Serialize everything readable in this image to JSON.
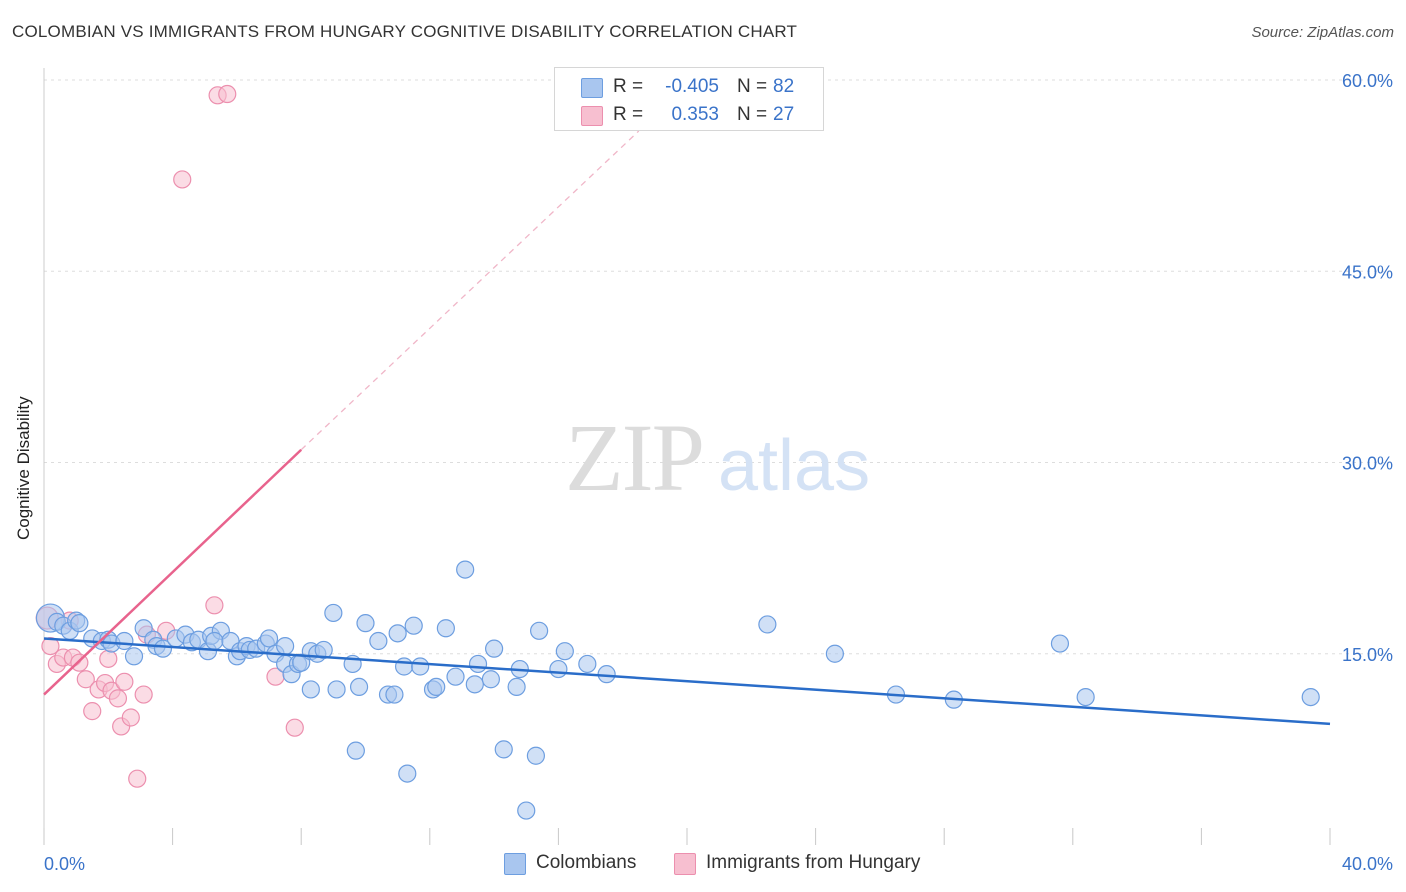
{
  "title": "COLOMBIAN VS IMMIGRANTS FROM HUNGARY COGNITIVE DISABILITY CORRELATION CHART",
  "source": "Source: ZipAtlas.com",
  "watermark": {
    "zip": "ZIP",
    "atlas": "atlas"
  },
  "legend_top": {
    "rows": [
      {
        "r_label": "R =",
        "r_value": "-0.405",
        "n_label": "N =",
        "n_value": "82"
      },
      {
        "r_label": "R =",
        "r_value": "0.353",
        "n_label": "N =",
        "n_value": "27"
      }
    ]
  },
  "legend_bottom": [
    "Colombians",
    "Immigrants from Hungary"
  ],
  "colors": {
    "colombians_fill": "#a9c6ef",
    "colombians_stroke": "#6d9ee0",
    "colombians_line": "#2a6dc9",
    "hungary_fill": "#f7bfd0",
    "hungary_stroke": "#ec8fae",
    "hungary_line": "#e8638d",
    "axis_label_blue": "#3a73c9"
  },
  "chart_data": {
    "type": "scatter",
    "title": "COLOMBIAN VS IMMIGRANTS FROM HUNGARY COGNITIVE DISABILITY CORRELATION CHART",
    "xlabel": "",
    "ylabel": "Cognitive Disability",
    "xlim": [
      0,
      40
    ],
    "ylim": [
      0,
      60
    ],
    "x_tick_labels": [
      "0.0%",
      "40.0%"
    ],
    "y_tick_labels": [
      "15.0%",
      "30.0%",
      "45.0%",
      "60.0%"
    ],
    "y_ticks": [
      15,
      30,
      45,
      60
    ],
    "grid": true,
    "legend_position": "top-center",
    "series": [
      {
        "name": "Colombians",
        "r": -0.405,
        "n": 82,
        "trend": {
          "x": [
            0,
            40
          ],
          "y": [
            16.2,
            9.5
          ]
        },
        "points": [
          [
            0.2,
            17.8
          ],
          [
            0.4,
            17.5
          ],
          [
            0.6,
            17.2
          ],
          [
            0.8,
            16.8
          ],
          [
            1.0,
            17.6
          ],
          [
            1.1,
            17.4
          ],
          [
            1.5,
            16.2
          ],
          [
            1.8,
            16.0
          ],
          [
            2.0,
            16.1
          ],
          [
            2.1,
            15.8
          ],
          [
            2.5,
            16.0
          ],
          [
            2.8,
            14.8
          ],
          [
            3.1,
            17.0
          ],
          [
            3.4,
            16.1
          ],
          [
            3.5,
            15.6
          ],
          [
            3.7,
            15.4
          ],
          [
            4.1,
            16.2
          ],
          [
            4.4,
            16.5
          ],
          [
            4.6,
            15.9
          ],
          [
            4.8,
            16.1
          ],
          [
            5.1,
            15.2
          ],
          [
            5.2,
            16.4
          ],
          [
            5.5,
            16.8
          ],
          [
            5.3,
            16.0
          ],
          [
            5.8,
            16.0
          ],
          [
            6.0,
            14.8
          ],
          [
            6.1,
            15.2
          ],
          [
            6.3,
            15.6
          ],
          [
            6.4,
            15.3
          ],
          [
            6.6,
            15.4
          ],
          [
            6.9,
            15.8
          ],
          [
            7.0,
            16.2
          ],
          [
            7.2,
            15.0
          ],
          [
            7.5,
            15.6
          ],
          [
            7.5,
            14.2
          ],
          [
            7.7,
            13.4
          ],
          [
            7.9,
            14.2
          ],
          [
            8.0,
            14.3
          ],
          [
            8.3,
            15.2
          ],
          [
            8.5,
            15.0
          ],
          [
            8.7,
            15.3
          ],
          [
            8.3,
            12.2
          ],
          [
            9.0,
            18.2
          ],
          [
            9.1,
            12.2
          ],
          [
            9.6,
            14.2
          ],
          [
            9.8,
            12.4
          ],
          [
            10.0,
            17.4
          ],
          [
            10.4,
            16.0
          ],
          [
            10.7,
            11.8
          ],
          [
            10.9,
            11.8
          ],
          [
            11.0,
            16.6
          ],
          [
            11.2,
            14.0
          ],
          [
            11.5,
            17.2
          ],
          [
            11.7,
            14.0
          ],
          [
            12.1,
            12.2
          ],
          [
            12.2,
            12.4
          ],
          [
            12.5,
            17.0
          ],
          [
            12.8,
            13.2
          ],
          [
            13.1,
            21.6
          ],
          [
            13.4,
            12.6
          ],
          [
            13.5,
            14.2
          ],
          [
            13.9,
            13.0
          ],
          [
            14.0,
            15.4
          ],
          [
            14.7,
            12.4
          ],
          [
            14.8,
            13.8
          ],
          [
            15.4,
            16.8
          ],
          [
            15.0,
            2.7
          ],
          [
            16.0,
            13.8
          ],
          [
            16.2,
            15.2
          ],
          [
            16.9,
            14.2
          ],
          [
            17.5,
            13.4
          ],
          [
            9.7,
            7.4
          ],
          [
            11.3,
            5.6
          ],
          [
            14.3,
            7.5
          ],
          [
            15.3,
            7.0
          ],
          [
            22.5,
            17.3
          ],
          [
            24.6,
            15.0
          ],
          [
            26.5,
            11.8
          ],
          [
            28.3,
            11.4
          ],
          [
            31.6,
            15.8
          ],
          [
            32.4,
            11.6
          ],
          [
            39.4,
            11.6
          ]
        ]
      },
      {
        "name": "Immigrants from Hungary",
        "r": 0.353,
        "n": 27,
        "trend": {
          "x": [
            0,
            8
          ],
          "y": [
            11.8,
            31.0
          ]
        },
        "trend_extension": {
          "x": [
            8,
            18.5
          ],
          "y": [
            31.0,
            56.0
          ]
        },
        "points": [
          [
            0.1,
            17.8
          ],
          [
            0.2,
            15.6
          ],
          [
            0.4,
            14.2
          ],
          [
            0.6,
            14.7
          ],
          [
            0.8,
            17.6
          ],
          [
            0.9,
            14.7
          ],
          [
            1.1,
            14.3
          ],
          [
            1.3,
            13.0
          ],
          [
            1.5,
            10.5
          ],
          [
            1.7,
            12.2
          ],
          [
            1.9,
            12.7
          ],
          [
            2.0,
            14.6
          ],
          [
            2.1,
            12.1
          ],
          [
            2.3,
            11.5
          ],
          [
            2.4,
            9.3
          ],
          [
            2.5,
            12.8
          ],
          [
            2.7,
            10.0
          ],
          [
            2.9,
            5.2
          ],
          [
            3.1,
            11.8
          ],
          [
            3.2,
            16.5
          ],
          [
            3.8,
            16.8
          ],
          [
            4.3,
            52.2
          ],
          [
            5.3,
            18.8
          ],
          [
            5.4,
            58.8
          ],
          [
            5.7,
            58.9
          ],
          [
            7.2,
            13.2
          ],
          [
            7.8,
            9.2
          ]
        ]
      }
    ]
  }
}
